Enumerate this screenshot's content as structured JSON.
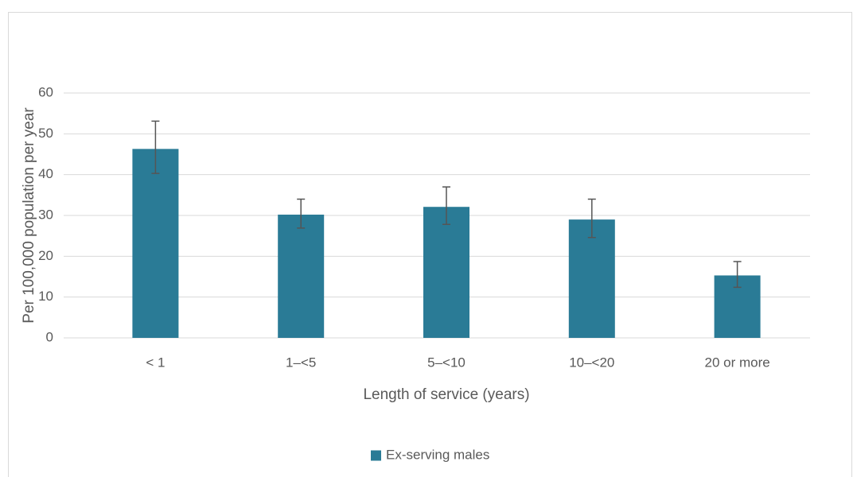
{
  "chart_data": {
    "type": "bar",
    "x_label": "Length of service (years)",
    "y_label": "Per 100,000 population per year",
    "categories": [
      "< 1",
      "1–<5",
      "5–<10",
      "10–<20",
      "20 or more"
    ],
    "series": [
      {
        "name": "Ex-serving males",
        "color": "#2a7b96",
        "values": [
          46.3,
          30.2,
          32.1,
          29.0,
          15.3
        ],
        "error_lower": [
          40.3,
          26.9,
          27.8,
          24.6,
          12.4
        ],
        "error_upper": [
          53.1,
          34.0,
          37.0,
          34.0,
          18.7
        ]
      }
    ],
    "ylim": [
      0,
      60
    ],
    "yticks": [
      0,
      10,
      20,
      30,
      40,
      50,
      60
    ],
    "grid": true,
    "legend": "bottom"
  }
}
